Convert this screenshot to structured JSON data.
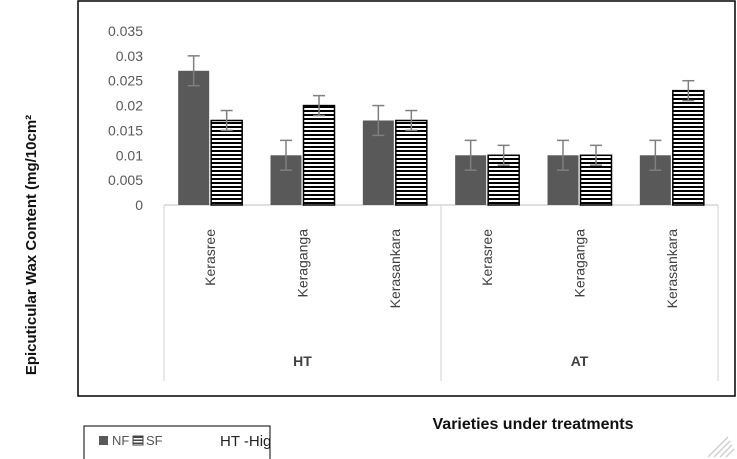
{
  "chart_data": {
    "type": "bar",
    "groups": [
      "HT",
      "AT"
    ],
    "categories": [
      "Kerasree",
      "Keraganga",
      "Kerasankara",
      "Kerasree",
      "Keraganga",
      "Kerasankara"
    ],
    "category_group": [
      0,
      0,
      0,
      1,
      1,
      1
    ],
    "series": [
      {
        "name": "NF",
        "values": [
          0.027,
          0.01,
          0.017,
          0.01,
          0.01,
          0.01
        ],
        "errors": [
          0.003,
          0.003,
          0.003,
          0.003,
          0.003,
          0.003
        ],
        "color": "#595959",
        "pattern": "solid"
      },
      {
        "name": "SF",
        "values": [
          0.017,
          0.02,
          0.017,
          0.01,
          0.01,
          0.023
        ],
        "errors": [
          0.002,
          0.002,
          0.002,
          0.002,
          0.002,
          0.002
        ],
        "color": "#000000",
        "pattern": "horizontal-stripes"
      }
    ],
    "yticks": [
      "0",
      "0.005",
      "0.01",
      "0.015",
      "0.02",
      "0.025",
      "0.03",
      "0.035"
    ],
    "ylim": [
      0,
      0.035
    ],
    "ylabel": "Epicuticular Wax Content (mg/10cm²",
    "xlabel": "Varieties under treatments",
    "grid": false,
    "legend": {
      "position": "bottom-left",
      "note": "HT -Hig"
    }
  }
}
